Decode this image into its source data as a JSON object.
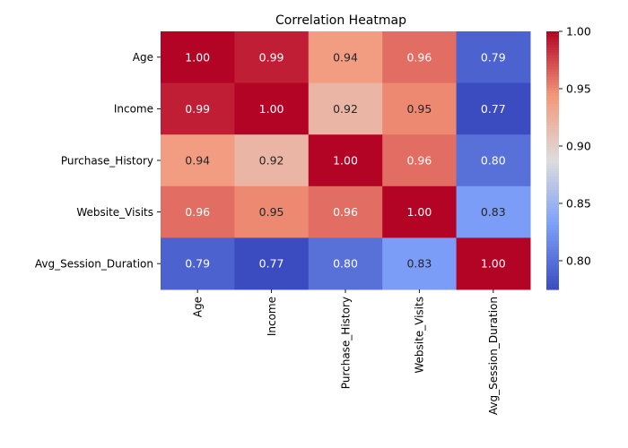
{
  "chart_data": {
    "type": "heatmap",
    "title": "Correlation Heatmap",
    "rows": [
      "Age",
      "Income",
      "Purchase_History",
      "Website_Visits",
      "Avg_Session_Duration"
    ],
    "columns": [
      "Age",
      "Income",
      "Purchase_History",
      "Website_Visits",
      "Avg_Session_Duration"
    ],
    "values": [
      [
        1.0,
        0.99,
        0.94,
        0.96,
        0.79
      ],
      [
        0.99,
        1.0,
        0.92,
        0.95,
        0.77
      ],
      [
        0.94,
        0.92,
        1.0,
        0.96,
        0.8
      ],
      [
        0.96,
        0.95,
        0.96,
        1.0,
        0.83
      ],
      [
        0.79,
        0.77,
        0.8,
        0.83,
        1.0
      ]
    ],
    "value_format": "0.00",
    "colormap": "coolwarm",
    "colorbar": {
      "min": 0.775,
      "max": 1.0,
      "ticks": [
        0.8,
        0.85,
        0.9,
        0.95,
        1.0
      ],
      "tick_labels": [
        "0.80",
        "0.85",
        "0.90",
        "0.95",
        "1.00"
      ]
    },
    "xlabel": "",
    "ylabel": "",
    "grid": false
  }
}
